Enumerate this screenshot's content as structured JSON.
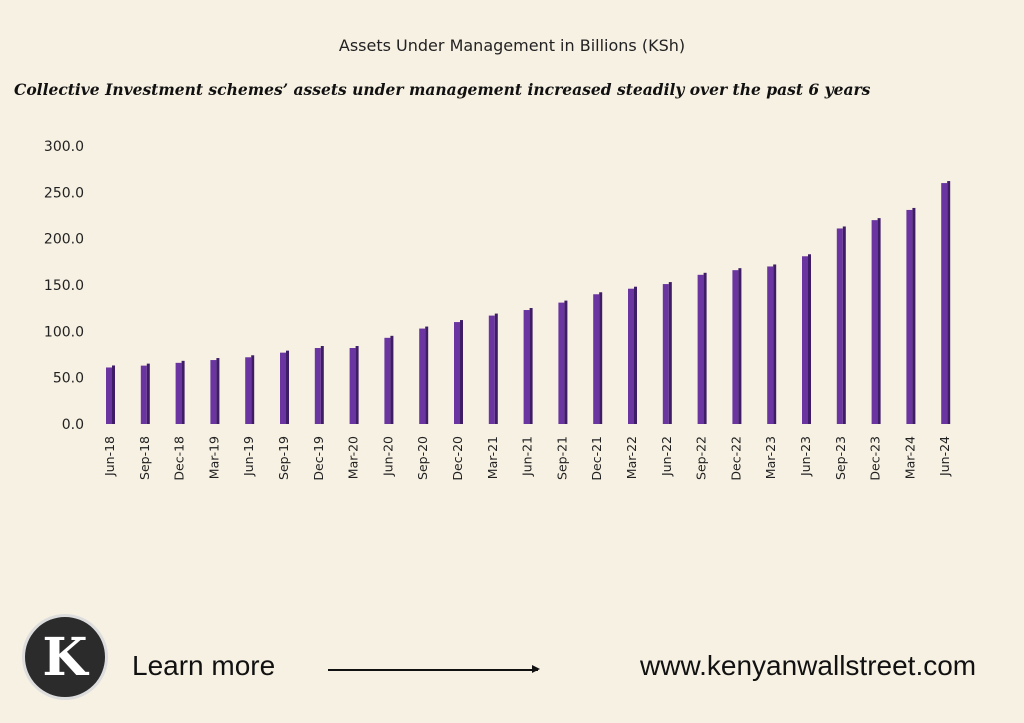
{
  "chart_data": {
    "type": "bar",
    "title": "Assets Under Management in Billions (KSh)",
    "subtitle": "Collective Investment schemes’ assets under management increased steadily over the past 6 years",
    "categories": [
      "Jun-18",
      "Sep-18",
      "Dec-18",
      "Mar-19",
      "Jun-19",
      "Sep-19",
      "Dec-19",
      "Mar-20",
      "Jun-20",
      "Sep-20",
      "Dec-20",
      "Mar-21",
      "Jun-21",
      "Sep-21",
      "Dec-21",
      "Mar-22",
      "Jun-22",
      "Sep-22",
      "Dec-22",
      "Mar-23",
      "Jun-23",
      "Sep-23",
      "Dec-23",
      "Mar-24",
      "Jun-24"
    ],
    "values": [
      61,
      63,
      66,
      69,
      72,
      77,
      82,
      82,
      93,
      103,
      110,
      117,
      123,
      131,
      140,
      146,
      151,
      161,
      166,
      170,
      181,
      211,
      220,
      231,
      260
    ],
    "ylim": [
      0,
      300
    ],
    "yticks": [
      "0.0",
      "50.0",
      "100.0",
      "150.0",
      "200.0",
      "250.0",
      "300.0"
    ],
    "grid": false,
    "bar_color": "#5b2a8a"
  },
  "footer": {
    "logo_letter": "K",
    "learn_more": "Learn more",
    "url": "www.kenyanwallstreet.com"
  }
}
